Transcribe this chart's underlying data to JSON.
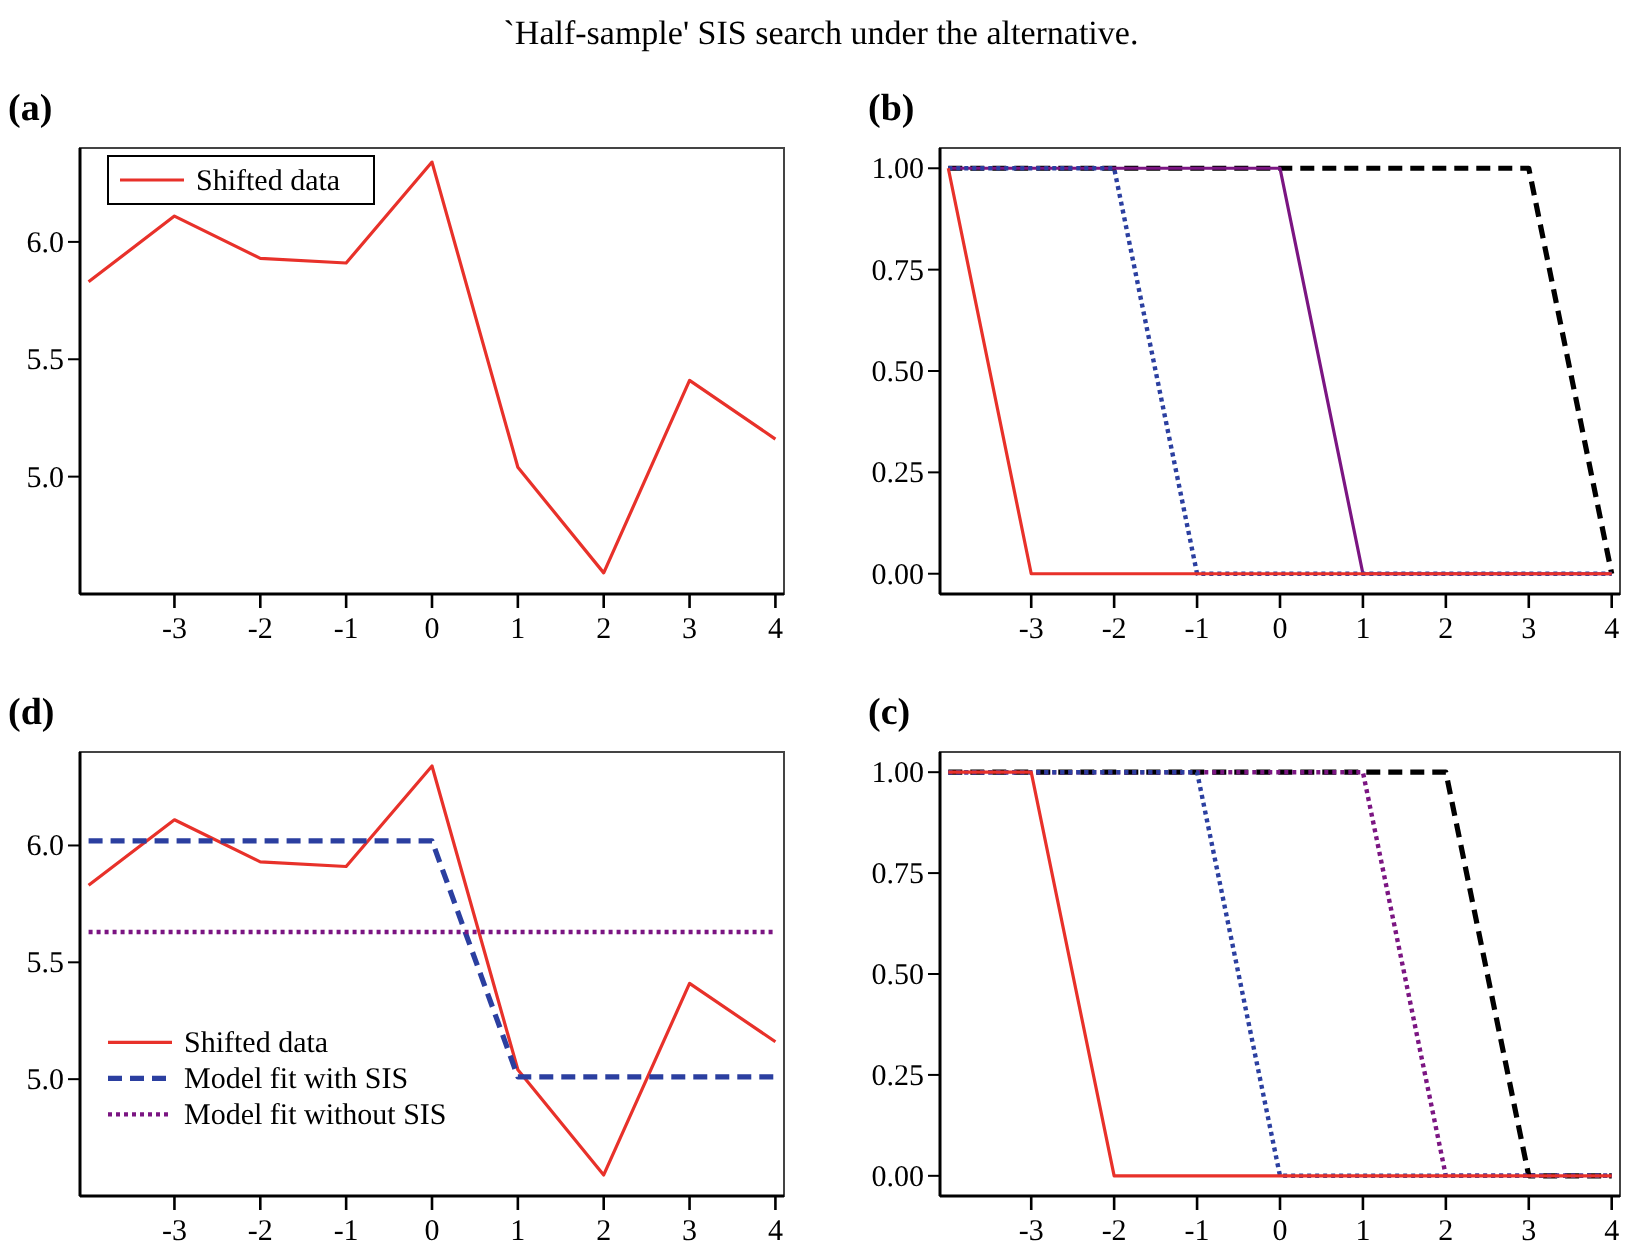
{
  "chart_data": [
    {
      "type": "line",
      "title": "(a)",
      "annotations": [
        "`Half-sample' SIS search under the alternative."
      ],
      "x": [
        -4,
        -3,
        -2,
        -1,
        0,
        1,
        2,
        3,
        4
      ],
      "xlim": [
        -4.1,
        4.1
      ],
      "xticks": [
        -3,
        -2,
        -1,
        0,
        1,
        2,
        3,
        4
      ],
      "ylim": [
        4.5,
        6.4
      ],
      "yticks": [
        {
          "value": 5,
          "label": "5.0"
        },
        5.5,
        {
          "value": 6,
          "label": "6.0"
        }
      ],
      "legend": "top left",
      "line_style": "solid",
      "marker": "none",
      "series": [
        {
          "name": "Shifted data",
          "color": "#e8312a",
          "values": [
            5.83,
            6.11,
            5.93,
            5.91,
            6.34,
            5.04,
            4.59,
            5.41,
            5.16
          ]
        }
      ]
    },
    {
      "type": "line",
      "title": "(b)",
      "x": [
        -4,
        -3,
        -2,
        -1,
        0,
        1,
        2,
        3,
        4
      ],
      "xlim": [
        -4.1,
        4.1
      ],
      "xticks": [
        -3,
        -2,
        -1,
        0,
        1,
        2,
        3,
        4
      ],
      "ylim": [
        -0.05,
        1.05
      ],
      "yticks": [
        {
          "value": 0,
          "label": "0.00"
        },
        {
          "value": 0.25,
          "label": "0.25"
        },
        {
          "value": 0.5,
          "label": "0.50"
        },
        {
          "value": 0.75,
          "label": "0.75"
        },
        {
          "value": 1,
          "label": "1.00"
        }
      ],
      "marker": "none",
      "series": [
        {
          "color": "#000000",
          "line_style": "dashed",
          "values": [
            1,
            1,
            1,
            1,
            1,
            1,
            1,
            1,
            0
          ]
        },
        {
          "color": "#7b1582",
          "line_style": "solid",
          "values": [
            1,
            1,
            1,
            1,
            1,
            0,
            0,
            0,
            0
          ]
        },
        {
          "color": "#2b3fa0",
          "line_style": "dotted",
          "values": [
            1,
            1,
            1,
            0,
            0,
            0,
            0,
            0,
            0
          ]
        },
        {
          "color": "#e8312a",
          "line_style": "solid",
          "values": [
            1,
            0,
            0,
            0,
            0,
            0,
            0,
            0,
            0
          ]
        }
      ]
    },
    {
      "type": "line",
      "title": "(d)",
      "x": [
        -4,
        -3,
        -2,
        -1,
        0,
        1,
        2,
        3,
        4
      ],
      "xlim": [
        -4.1,
        4.1
      ],
      "xticks": [
        -3,
        -2,
        -1,
        0,
        1,
        2,
        3,
        4
      ],
      "ylim": [
        4.5,
        6.4
      ],
      "yticks": [
        {
          "value": 5,
          "label": "5.0"
        },
        5.5,
        {
          "value": 6,
          "label": "6.0"
        }
      ],
      "legend": "left",
      "marker": "none",
      "series": [
        {
          "name": "Shifted data",
          "color": "#e8312a",
          "line_style": "solid",
          "values": [
            5.83,
            6.11,
            5.93,
            5.91,
            6.34,
            5.04,
            4.59,
            5.41,
            5.16
          ]
        },
        {
          "name": "Model fit with SIS",
          "color": "#2b3fa0",
          "line_style": "dashed",
          "values": [
            6.02,
            6.02,
            6.02,
            6.02,
            6.02,
            5.01,
            5.01,
            5.01,
            5.01
          ]
        },
        {
          "name": "Model fit without SIS",
          "color": "#7b1582",
          "line_style": "dotted",
          "values": [
            5.63,
            5.63,
            5.63,
            5.63,
            5.63,
            5.63,
            5.63,
            5.63,
            5.63
          ]
        }
      ]
    },
    {
      "type": "line",
      "title": "(c)",
      "x": [
        -4,
        -3,
        -2,
        -1,
        0,
        1,
        2,
        3,
        4
      ],
      "xlim": [
        -4.1,
        4.1
      ],
      "xticks": [
        -3,
        -2,
        -1,
        0,
        1,
        2,
        3,
        4
      ],
      "ylim": [
        -0.05,
        1.05
      ],
      "yticks": [
        {
          "value": 0,
          "label": "0.00"
        },
        {
          "value": 0.25,
          "label": "0.25"
        },
        {
          "value": 0.5,
          "label": "0.50"
        },
        {
          "value": 0.75,
          "label": "0.75"
        },
        {
          "value": 1,
          "label": "1.00"
        }
      ],
      "marker": "none",
      "series": [
        {
          "color": "#000000",
          "line_style": "dashed",
          "values": [
            1,
            1,
            1,
            1,
            1,
            1,
            1,
            0,
            0
          ]
        },
        {
          "color": "#7b1582",
          "line_style": "dotted",
          "values": [
            1,
            1,
            1,
            1,
            1,
            1,
            0,
            0,
            0
          ]
        },
        {
          "color": "#2b3fa0",
          "line_style": "dotted",
          "values": [
            1,
            1,
            1,
            1,
            0,
            0,
            0,
            0,
            0
          ]
        },
        {
          "color": "#e8312a",
          "line_style": "solid",
          "values": [
            1,
            1,
            0,
            0,
            0,
            0,
            0,
            0,
            0
          ]
        }
      ]
    }
  ]
}
